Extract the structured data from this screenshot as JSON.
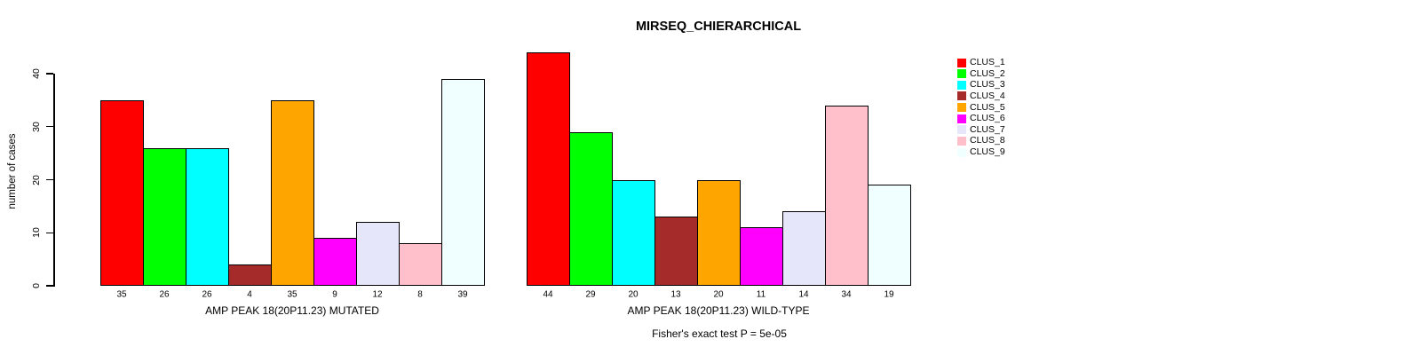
{
  "figure": {
    "title": "MIRSEQ_CHIERARCHICAL",
    "footnote": "Fisher's exact test P = 5e-05",
    "background": "#FFFFFF"
  },
  "axis": {
    "ylabel": "number of cases",
    "yticks": [
      0,
      10,
      20,
      30,
      40
    ]
  },
  "legend": {
    "position": "right",
    "items": [
      {
        "label": "CLUS_1",
        "color": "#FF0000"
      },
      {
        "label": "CLUS_2",
        "color": "#00FF00"
      },
      {
        "label": "CLUS_3",
        "color": "#00FFFF"
      },
      {
        "label": "CLUS_4",
        "color": "#A52A2A"
      },
      {
        "label": "CLUS_5",
        "color": "#FFA500"
      },
      {
        "label": "CLUS_6",
        "color": "#FF00FF"
      },
      {
        "label": "CLUS_7",
        "color": "#E6E6FA"
      },
      {
        "label": "CLUS_8",
        "color": "#FFC0CB"
      },
      {
        "label": "CLUS_9",
        "color": "#F0FFFF"
      }
    ]
  },
  "chart_data": [
    {
      "type": "bar",
      "title": "MIRSEQ_CHIERARCHICAL",
      "xlabel": "AMP PEAK 18(20P11.23) MUTATED",
      "ylabel": "number of cases",
      "categories": [
        "CLUS_1",
        "CLUS_2",
        "CLUS_3",
        "CLUS_4",
        "CLUS_5",
        "CLUS_6",
        "CLUS_7",
        "CLUS_8",
        "CLUS_9"
      ],
      "values": [
        35,
        26,
        26,
        4,
        35,
        9,
        12,
        8,
        39
      ],
      "colors": [
        "#FF0000",
        "#00FF00",
        "#00FFFF",
        "#A52A2A",
        "#FFA500",
        "#FF00FF",
        "#E6E6FA",
        "#FFC0CB",
        "#F0FFFF"
      ],
      "ylim": [
        0,
        44
      ],
      "grid": false,
      "legend_position": "right"
    },
    {
      "type": "bar",
      "title": "MIRSEQ_CHIERARCHICAL",
      "xlabel": "AMP PEAK 18(20P11.23) WILD-TYPE",
      "ylabel": "number of cases",
      "categories": [
        "CLUS_1",
        "CLUS_2",
        "CLUS_3",
        "CLUS_4",
        "CLUS_5",
        "CLUS_6",
        "CLUS_7",
        "CLUS_8",
        "CLUS_9"
      ],
      "values": [
        44,
        29,
        20,
        13,
        20,
        11,
        14,
        34,
        19
      ],
      "colors": [
        "#FF0000",
        "#00FF00",
        "#00FFFF",
        "#A52A2A",
        "#FFA500",
        "#FF00FF",
        "#E6E6FA",
        "#FFC0CB",
        "#F0FFFF"
      ],
      "ylim": [
        0,
        44
      ],
      "grid": false,
      "legend_position": "right"
    }
  ]
}
